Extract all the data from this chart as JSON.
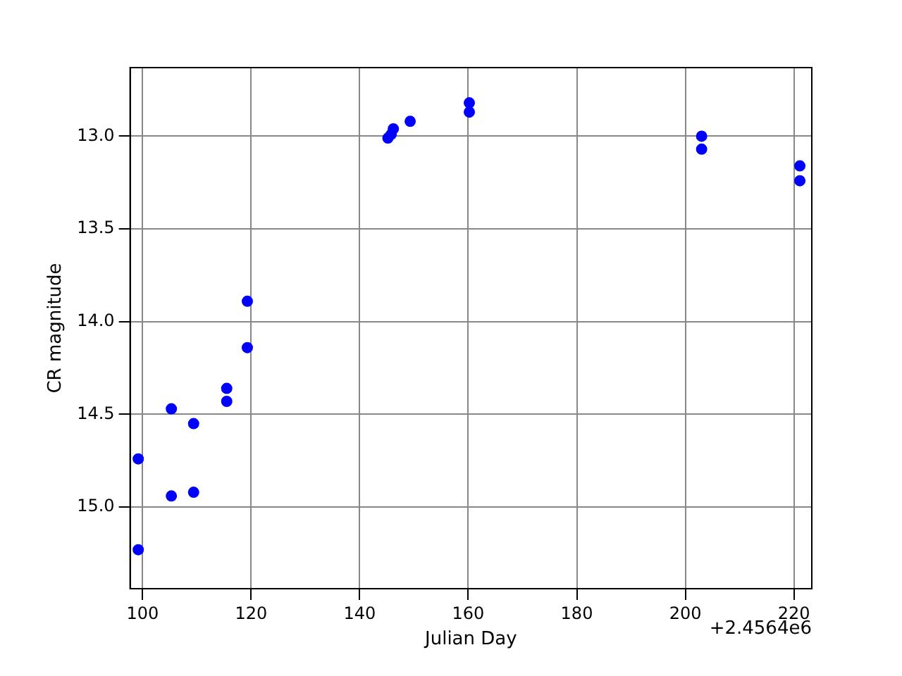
{
  "chart_data": {
    "type": "scatter",
    "xlabel": "Julian Day",
    "ylabel": "CR magnitude",
    "annotations": [
      "+2.4564e6"
    ],
    "series": [
      {
        "color": "#0000ff",
        "x": [
          99.2,
          99.2,
          105.3,
          105.3,
          109.4,
          109.4,
          115.5,
          115.5,
          119.3,
          119.3,
          145.2,
          145.8,
          146.2,
          149.3,
          160.2,
          160.2,
          203.0,
          203.0,
          221.1,
          221.1
        ],
        "values": [
          14.74,
          15.23,
          14.47,
          14.94,
          14.55,
          14.92,
          14.36,
          14.43,
          13.89,
          14.14,
          13.01,
          12.99,
          12.96,
          12.92,
          12.82,
          12.87,
          13.0,
          13.07,
          13.16,
          13.24
        ]
      }
    ],
    "xlim": [
      97.7,
      223.3
    ],
    "xticks": [
      100,
      120,
      140,
      160,
      180,
      200,
      220
    ],
    "ylim": [
      15.44,
      12.63
    ],
    "yticks": [
      {
        "value": 13,
        "label": "13.0"
      },
      {
        "value": 13.5,
        "label": "13.5"
      },
      {
        "value": 14,
        "label": "14.0"
      },
      {
        "value": 14.5,
        "label": "14.5"
      },
      {
        "value": 15,
        "label": "15.0"
      }
    ],
    "grid": true,
    "legend": false,
    "marker": "circle"
  }
}
